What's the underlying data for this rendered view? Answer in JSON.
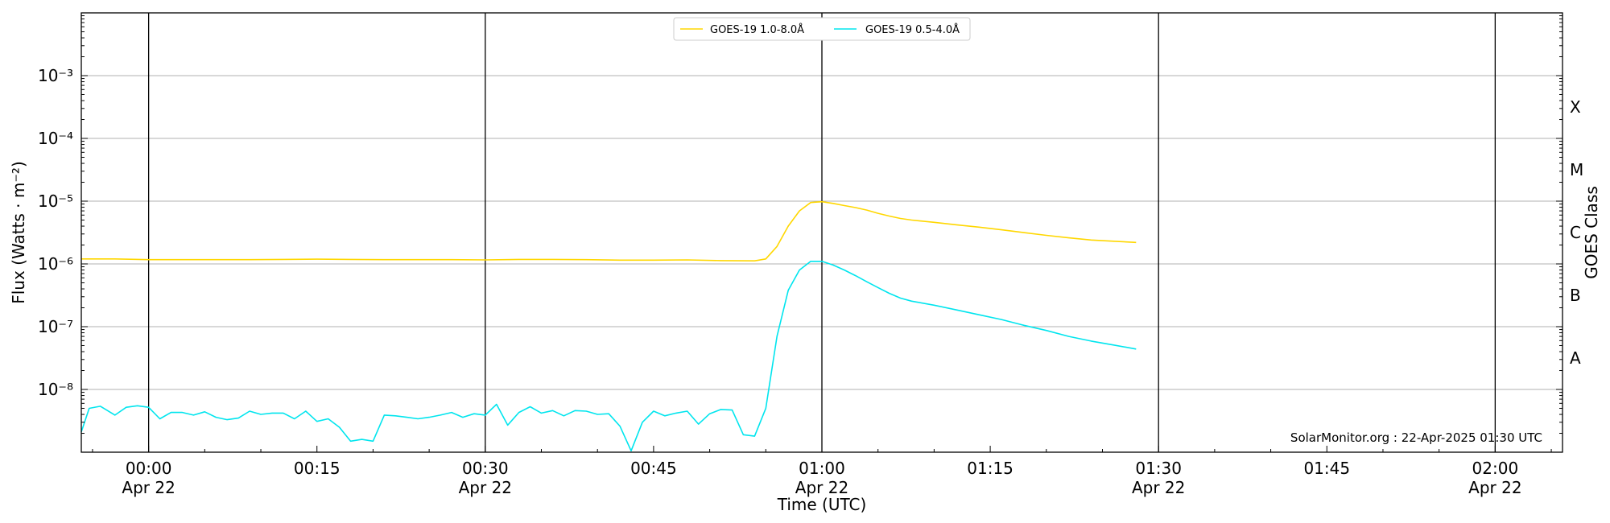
{
  "chart_data": {
    "type": "line",
    "xlabel": "Time (UTC)",
    "ylabel": "Flux (Watts · m⁻²)",
    "ylabel_right": "GOES Class",
    "x_unit": "minutes after 2025-04-22 00:00 UTC",
    "xlim": [
      -6,
      126
    ],
    "ylim": [
      1e-09,
      0.01
    ],
    "yscale": "log",
    "grid": "horizontal",
    "legend_position": "top-center",
    "credit": "SolarMonitor.org : 22-Apr-2025 01:30 UTC",
    "x_ticks": [
      {
        "x": 0,
        "line1": "00:00",
        "line2": "Apr 22"
      },
      {
        "x": 15,
        "line1": "00:15",
        "line2": ""
      },
      {
        "x": 30,
        "line1": "00:30",
        "line2": "Apr 22"
      },
      {
        "x": 45,
        "line1": "00:45",
        "line2": ""
      },
      {
        "x": 60,
        "line1": "01:00",
        "line2": "Apr 22"
      },
      {
        "x": 75,
        "line1": "01:15",
        "line2": ""
      },
      {
        "x": 90,
        "line1": "01:30",
        "line2": "Apr 22"
      },
      {
        "x": 105,
        "line1": "01:45",
        "line2": ""
      },
      {
        "x": 120,
        "line1": "02:00",
        "line2": "Apr 22"
      }
    ],
    "vertical_lines": [
      0,
      30,
      60,
      90,
      120
    ],
    "y_ticks": [
      {
        "exp": -8,
        "label": "10⁻⁸"
      },
      {
        "exp": -7,
        "label": "10⁻⁷"
      },
      {
        "exp": -6,
        "label": "10⁻⁶"
      },
      {
        "exp": -5,
        "label": "10⁻⁵"
      },
      {
        "exp": -4,
        "label": "10⁻⁴"
      },
      {
        "exp": -3,
        "label": "10⁻³"
      }
    ],
    "goes_classes": [
      {
        "label": "A",
        "at": 3.16e-08
      },
      {
        "label": "B",
        "at": 3.16e-07
      },
      {
        "label": "C",
        "at": 3.16e-06
      },
      {
        "label": "M",
        "at": 3.16e-05
      },
      {
        "label": "X",
        "at": 0.000316
      }
    ],
    "series": [
      {
        "name": "GOES-19 1.0-8.0Å",
        "color": "#ffd700",
        "x": [
          -6,
          -3,
          0,
          3,
          6,
          9,
          12,
          15,
          18,
          21,
          24,
          27,
          30,
          33,
          36,
          39,
          42,
          45,
          48,
          51,
          54,
          55,
          56,
          57,
          58,
          59,
          60,
          61,
          62,
          63,
          64,
          65,
          66,
          67,
          68,
          70,
          72,
          74,
          76,
          78,
          80,
          82,
          84,
          86,
          88
        ],
        "y": [
          1.2e-06,
          1.2e-06,
          1.17e-06,
          1.17e-06,
          1.17e-06,
          1.17e-06,
          1.18e-06,
          1.19e-06,
          1.18e-06,
          1.17e-06,
          1.17e-06,
          1.17e-06,
          1.16e-06,
          1.18e-06,
          1.18e-06,
          1.17e-06,
          1.15e-06,
          1.15e-06,
          1.16e-06,
          1.13e-06,
          1.12e-06,
          1.2e-06,
          1.9e-06,
          4e-06,
          7e-06,
          9.5e-06,
          9.8e-06,
          9.2e-06,
          8.5e-06,
          7.9e-06,
          7.2e-06,
          6.4e-06,
          5.8e-06,
          5.3e-06,
          5e-06,
          4.6e-06,
          4.2e-06,
          3.85e-06,
          3.5e-06,
          3.15e-06,
          2.85e-06,
          2.6e-06,
          2.4e-06,
          2.3e-06,
          2.2e-06
        ]
      },
      {
        "name": "GOES-19 0.5-4.0Å",
        "color": "#00e5ee",
        "x": [
          -6,
          -5.3,
          -4.3,
          -3,
          -2,
          -1,
          0,
          1,
          2,
          3,
          4,
          5,
          6,
          7,
          8,
          9,
          10,
          11,
          12,
          13,
          14,
          15,
          16,
          17,
          18,
          19,
          20,
          21,
          22,
          23,
          24,
          25,
          26,
          27,
          28,
          29,
          30,
          31,
          32,
          33,
          34,
          35,
          36,
          37,
          38,
          39,
          40,
          41,
          42,
          43,
          44,
          45,
          46,
          47,
          48,
          49,
          50,
          51,
          52,
          53,
          54,
          55,
          56,
          57,
          58,
          59,
          60,
          61,
          62,
          63,
          64,
          65,
          66,
          67,
          68,
          70,
          72,
          74,
          76,
          78,
          80,
          82,
          84,
          86,
          88
        ],
        "y": [
          2.1e-09,
          5e-09,
          5.4e-09,
          3.9e-09,
          5.2e-09,
          5.5e-09,
          5.2e-09,
          3.4e-09,
          4.3e-09,
          4.3e-09,
          3.9e-09,
          4.4e-09,
          3.6e-09,
          3.3e-09,
          3.5e-09,
          4.5e-09,
          4e-09,
          4.2e-09,
          4.2e-09,
          3.4e-09,
          4.5e-09,
          3.1e-09,
          3.4e-09,
          2.5e-09,
          1.5e-09,
          1.6e-09,
          1.5e-09,
          3.9e-09,
          3.8e-09,
          3.6e-09,
          3.4e-09,
          3.6e-09,
          3.9e-09,
          4.3e-09,
          3.6e-09,
          4.1e-09,
          3.9e-09,
          5.8e-09,
          2.7e-09,
          4.3e-09,
          5.3e-09,
          4.2e-09,
          4.6e-09,
          3.8e-09,
          4.6e-09,
          4.5e-09,
          4e-09,
          4.1e-09,
          2.6e-09,
          1.05e-09,
          3e-09,
          4.5e-09,
          3.8e-09,
          4.2e-09,
          4.5e-09,
          2.8e-09,
          4.1e-09,
          4.8e-09,
          4.7e-09,
          1.9e-09,
          1.8e-09,
          5e-09,
          7e-08,
          3.8e-07,
          8e-07,
          1.1e-06,
          1.1e-06,
          9.6e-07,
          8e-07,
          6.5e-07,
          5.2e-07,
          4.2e-07,
          3.4e-07,
          2.85e-07,
          2.55e-07,
          2.2e-07,
          1.85e-07,
          1.55e-07,
          1.3e-07,
          1.05e-07,
          8.7e-08,
          7e-08,
          5.9e-08,
          5.1e-08,
          4.4e-08
        ]
      }
    ]
  }
}
